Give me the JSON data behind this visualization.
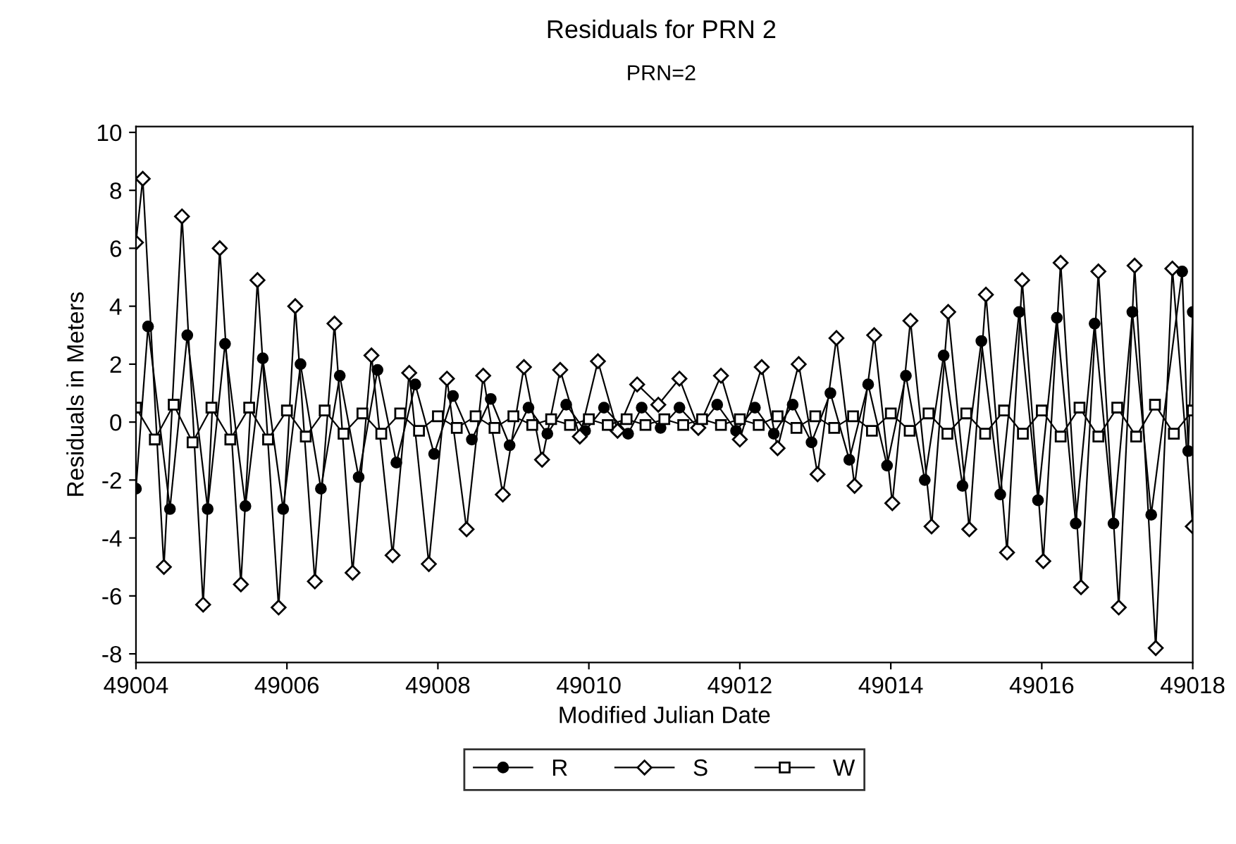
{
  "chart_data": {
    "type": "line",
    "title": "Residuals for PRN 2",
    "subtitle": "PRN=2",
    "xlabel": "Modified Julian Date",
    "ylabel": "Residuals in Meters",
    "xlim": [
      49004,
      49018
    ],
    "xticks": [
      49004,
      49006,
      49008,
      49010,
      49012,
      49014,
      49016,
      49018
    ],
    "ylim": [
      -8.3,
      10.2
    ],
    "yticks": [
      -8,
      -6,
      -4,
      -2,
      0,
      2,
      4,
      6,
      8,
      10
    ],
    "grid": false,
    "legend": "bottom",
    "line_style": "solid",
    "series": [
      {
        "name": "R",
        "color": "#000000",
        "marker": "circle",
        "x": [
          49004.0,
          49004.16,
          49004.45,
          49004.68,
          49004.95,
          49005.18,
          49005.45,
          49005.68,
          49005.95,
          49006.18,
          49006.45,
          49006.7,
          49006.95,
          49007.2,
          49007.45,
          49007.7,
          49007.95,
          49008.2,
          49008.45,
          49008.7,
          49008.95,
          49009.2,
          49009.45,
          49009.7,
          49009.95,
          49010.2,
          49010.52,
          49010.7,
          49010.95,
          49011.2,
          49011.45,
          49011.7,
          49011.95,
          49012.2,
          49012.45,
          49012.7,
          49012.95,
          49013.2,
          49013.45,
          49013.7,
          49013.95,
          49014.2,
          49014.45,
          49014.7,
          49014.95,
          49015.2,
          49015.45,
          49015.7,
          49015.95,
          49016.2,
          49016.45,
          49016.7,
          49016.95,
          49017.2,
          49017.45,
          49017.86,
          49017.94,
          49018.0
        ],
        "values": [
          -2.3,
          3.3,
          -3.0,
          3.0,
          -3.0,
          2.7,
          -2.9,
          2.2,
          -3.0,
          2.0,
          -2.3,
          1.6,
          -1.9,
          1.8,
          -1.4,
          1.3,
          -1.1,
          0.9,
          -0.6,
          0.8,
          -0.8,
          0.5,
          -0.4,
          0.6,
          -0.3,
          0.5,
          -0.4,
          0.5,
          -0.2,
          0.5,
          -0.2,
          0.6,
          -0.3,
          0.5,
          -0.4,
          0.6,
          -0.7,
          1.0,
          -1.3,
          1.3,
          -1.5,
          1.6,
          -2.0,
          2.3,
          -2.2,
          2.8,
          -2.5,
          3.8,
          -2.7,
          3.6,
          -3.5,
          3.4,
          -3.5,
          3.8,
          -3.2,
          5.2,
          -1.0,
          3.8
        ]
      },
      {
        "name": "S",
        "color": "#000000",
        "marker": "diamond",
        "x": [
          49004.0,
          49004.09,
          49004.37,
          49004.61,
          49004.89,
          49005.11,
          49005.39,
          49005.61,
          49005.89,
          49006.11,
          49006.37,
          49006.63,
          49006.87,
          49007.12,
          49007.4,
          49007.62,
          49007.88,
          49008.12,
          49008.38,
          49008.6,
          49008.86,
          49009.14,
          49009.38,
          49009.62,
          49009.88,
          49010.12,
          49010.38,
          49010.64,
          49010.92,
          49011.2,
          49011.45,
          49011.75,
          49012.0,
          49012.29,
          49012.5,
          49012.78,
          49013.03,
          49013.28,
          49013.52,
          49013.78,
          49014.02,
          49014.26,
          49014.54,
          49014.76,
          49015.04,
          49015.26,
          49015.54,
          49015.74,
          49016.02,
          49016.25,
          49016.52,
          49016.75,
          49017.02,
          49017.23,
          49017.51,
          49017.73,
          49018.0
        ],
        "values": [
          6.2,
          8.4,
          -5.0,
          7.1,
          -6.3,
          6.0,
          -5.6,
          4.9,
          -6.4,
          4.0,
          -5.5,
          3.4,
          -5.2,
          2.3,
          -4.6,
          1.7,
          -4.9,
          1.5,
          -3.7,
          1.6,
          -2.5,
          1.9,
          -1.3,
          1.8,
          -0.5,
          2.1,
          -0.3,
          1.3,
          0.6,
          1.5,
          -0.2,
          1.6,
          -0.6,
          1.9,
          -0.9,
          2.0,
          -1.8,
          2.9,
          -2.2,
          3.0,
          -2.8,
          3.5,
          -3.6,
          3.8,
          -3.7,
          4.4,
          -4.5,
          4.9,
          -4.8,
          5.5,
          -5.7,
          5.2,
          -6.4,
          5.4,
          -7.8,
          5.3,
          -3.6
        ]
      },
      {
        "name": "W",
        "color": "#000000",
        "marker": "square",
        "x": [
          49004.0,
          49004.25,
          49004.5,
          49004.75,
          49005.0,
          49005.25,
          49005.5,
          49005.75,
          49006.0,
          49006.25,
          49006.5,
          49006.75,
          49007.0,
          49007.25,
          49007.5,
          49007.75,
          49008.0,
          49008.25,
          49008.5,
          49008.75,
          49009.0,
          49009.25,
          49009.5,
          49009.75,
          49010.0,
          49010.25,
          49010.5,
          49010.75,
          49011.0,
          49011.25,
          49011.5,
          49011.75,
          49012.0,
          49012.25,
          49012.5,
          49012.75,
          49013.0,
          49013.25,
          49013.5,
          49013.75,
          49014.0,
          49014.25,
          49014.5,
          49014.75,
          49015.0,
          49015.25,
          49015.5,
          49015.75,
          49016.0,
          49016.25,
          49016.5,
          49016.75,
          49017.0,
          49017.25,
          49017.5,
          49017.75,
          49018.0
        ],
        "values": [
          0.5,
          -0.6,
          0.6,
          -0.7,
          0.5,
          -0.6,
          0.5,
          -0.6,
          0.4,
          -0.5,
          0.4,
          -0.4,
          0.3,
          -0.4,
          0.3,
          -0.3,
          0.2,
          -0.2,
          0.2,
          -0.2,
          0.2,
          -0.1,
          0.1,
          -0.1,
          0.1,
          -0.1,
          0.1,
          -0.1,
          0.1,
          -0.1,
          0.1,
          -0.1,
          0.1,
          -0.1,
          0.2,
          -0.2,
          0.2,
          -0.2,
          0.2,
          -0.3,
          0.3,
          -0.3,
          0.3,
          -0.4,
          0.3,
          -0.4,
          0.4,
          -0.4,
          0.4,
          -0.5,
          0.5,
          -0.5,
          0.5,
          -0.5,
          0.6,
          -0.4,
          0.4
        ]
      }
    ]
  }
}
